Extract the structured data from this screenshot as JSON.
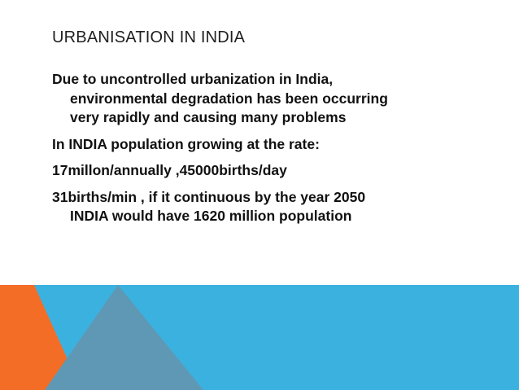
{
  "slide": {
    "title": "URBANISATION IN INDIA",
    "paragraphs": [
      {
        "lines": [
          "Due to uncontrolled urbanization in India,",
          "environmental degradation has been occurring",
          "very rapidly and causing many problems"
        ]
      },
      {
        "lines": [
          "In INDIA population growing at the rate:"
        ]
      },
      {
        "lines": [
          "17millon/annually ,45000births/day"
        ]
      },
      {
        "lines": [
          "31births/min , if it continuous by the year 2050",
          "INDIA would have 1620 million population"
        ]
      }
    ]
  }
}
